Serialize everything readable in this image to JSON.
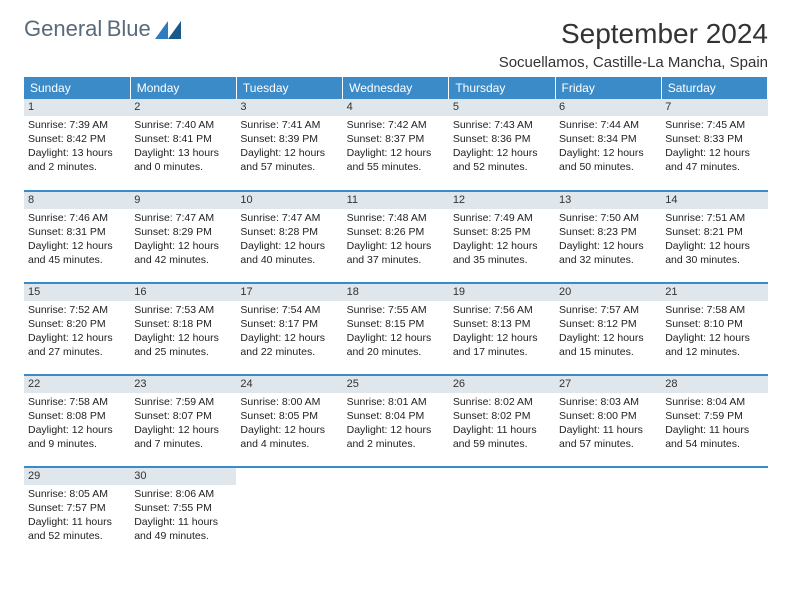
{
  "logo": {
    "text1": "General",
    "text2": "Blue"
  },
  "title": "September 2024",
  "location": "Socuellamos, Castille-La Mancha, Spain",
  "weekdays": [
    "Sunday",
    "Monday",
    "Tuesday",
    "Wednesday",
    "Thursday",
    "Friday",
    "Saturday"
  ],
  "colors": {
    "header_bg": "#3b8bc9",
    "daynum_bg": "#dfe6ec",
    "border": "#3b8bc9"
  },
  "days": [
    {
      "n": 1,
      "sr": "7:39 AM",
      "ss": "8:42 PM",
      "dl": "13 hours and 2 minutes."
    },
    {
      "n": 2,
      "sr": "7:40 AM",
      "ss": "8:41 PM",
      "dl": "13 hours and 0 minutes."
    },
    {
      "n": 3,
      "sr": "7:41 AM",
      "ss": "8:39 PM",
      "dl": "12 hours and 57 minutes."
    },
    {
      "n": 4,
      "sr": "7:42 AM",
      "ss": "8:37 PM",
      "dl": "12 hours and 55 minutes."
    },
    {
      "n": 5,
      "sr": "7:43 AM",
      "ss": "8:36 PM",
      "dl": "12 hours and 52 minutes."
    },
    {
      "n": 6,
      "sr": "7:44 AM",
      "ss": "8:34 PM",
      "dl": "12 hours and 50 minutes."
    },
    {
      "n": 7,
      "sr": "7:45 AM",
      "ss": "8:33 PM",
      "dl": "12 hours and 47 minutes."
    },
    {
      "n": 8,
      "sr": "7:46 AM",
      "ss": "8:31 PM",
      "dl": "12 hours and 45 minutes."
    },
    {
      "n": 9,
      "sr": "7:47 AM",
      "ss": "8:29 PM",
      "dl": "12 hours and 42 minutes."
    },
    {
      "n": 10,
      "sr": "7:47 AM",
      "ss": "8:28 PM",
      "dl": "12 hours and 40 minutes."
    },
    {
      "n": 11,
      "sr": "7:48 AM",
      "ss": "8:26 PM",
      "dl": "12 hours and 37 minutes."
    },
    {
      "n": 12,
      "sr": "7:49 AM",
      "ss": "8:25 PM",
      "dl": "12 hours and 35 minutes."
    },
    {
      "n": 13,
      "sr": "7:50 AM",
      "ss": "8:23 PM",
      "dl": "12 hours and 32 minutes."
    },
    {
      "n": 14,
      "sr": "7:51 AM",
      "ss": "8:21 PM",
      "dl": "12 hours and 30 minutes."
    },
    {
      "n": 15,
      "sr": "7:52 AM",
      "ss": "8:20 PM",
      "dl": "12 hours and 27 minutes."
    },
    {
      "n": 16,
      "sr": "7:53 AM",
      "ss": "8:18 PM",
      "dl": "12 hours and 25 minutes."
    },
    {
      "n": 17,
      "sr": "7:54 AM",
      "ss": "8:17 PM",
      "dl": "12 hours and 22 minutes."
    },
    {
      "n": 18,
      "sr": "7:55 AM",
      "ss": "8:15 PM",
      "dl": "12 hours and 20 minutes."
    },
    {
      "n": 19,
      "sr": "7:56 AM",
      "ss": "8:13 PM",
      "dl": "12 hours and 17 minutes."
    },
    {
      "n": 20,
      "sr": "7:57 AM",
      "ss": "8:12 PM",
      "dl": "12 hours and 15 minutes."
    },
    {
      "n": 21,
      "sr": "7:58 AM",
      "ss": "8:10 PM",
      "dl": "12 hours and 12 minutes."
    },
    {
      "n": 22,
      "sr": "7:58 AM",
      "ss": "8:08 PM",
      "dl": "12 hours and 9 minutes."
    },
    {
      "n": 23,
      "sr": "7:59 AM",
      "ss": "8:07 PM",
      "dl": "12 hours and 7 minutes."
    },
    {
      "n": 24,
      "sr": "8:00 AM",
      "ss": "8:05 PM",
      "dl": "12 hours and 4 minutes."
    },
    {
      "n": 25,
      "sr": "8:01 AM",
      "ss": "8:04 PM",
      "dl": "12 hours and 2 minutes."
    },
    {
      "n": 26,
      "sr": "8:02 AM",
      "ss": "8:02 PM",
      "dl": "11 hours and 59 minutes."
    },
    {
      "n": 27,
      "sr": "8:03 AM",
      "ss": "8:00 PM",
      "dl": "11 hours and 57 minutes."
    },
    {
      "n": 28,
      "sr": "8:04 AM",
      "ss": "7:59 PM",
      "dl": "11 hours and 54 minutes."
    },
    {
      "n": 29,
      "sr": "8:05 AM",
      "ss": "7:57 PM",
      "dl": "11 hours and 52 minutes."
    },
    {
      "n": 30,
      "sr": "8:06 AM",
      "ss": "7:55 PM",
      "dl": "11 hours and 49 minutes."
    }
  ],
  "labels": {
    "sunrise": "Sunrise:",
    "sunset": "Sunset:",
    "daylight": "Daylight:"
  }
}
